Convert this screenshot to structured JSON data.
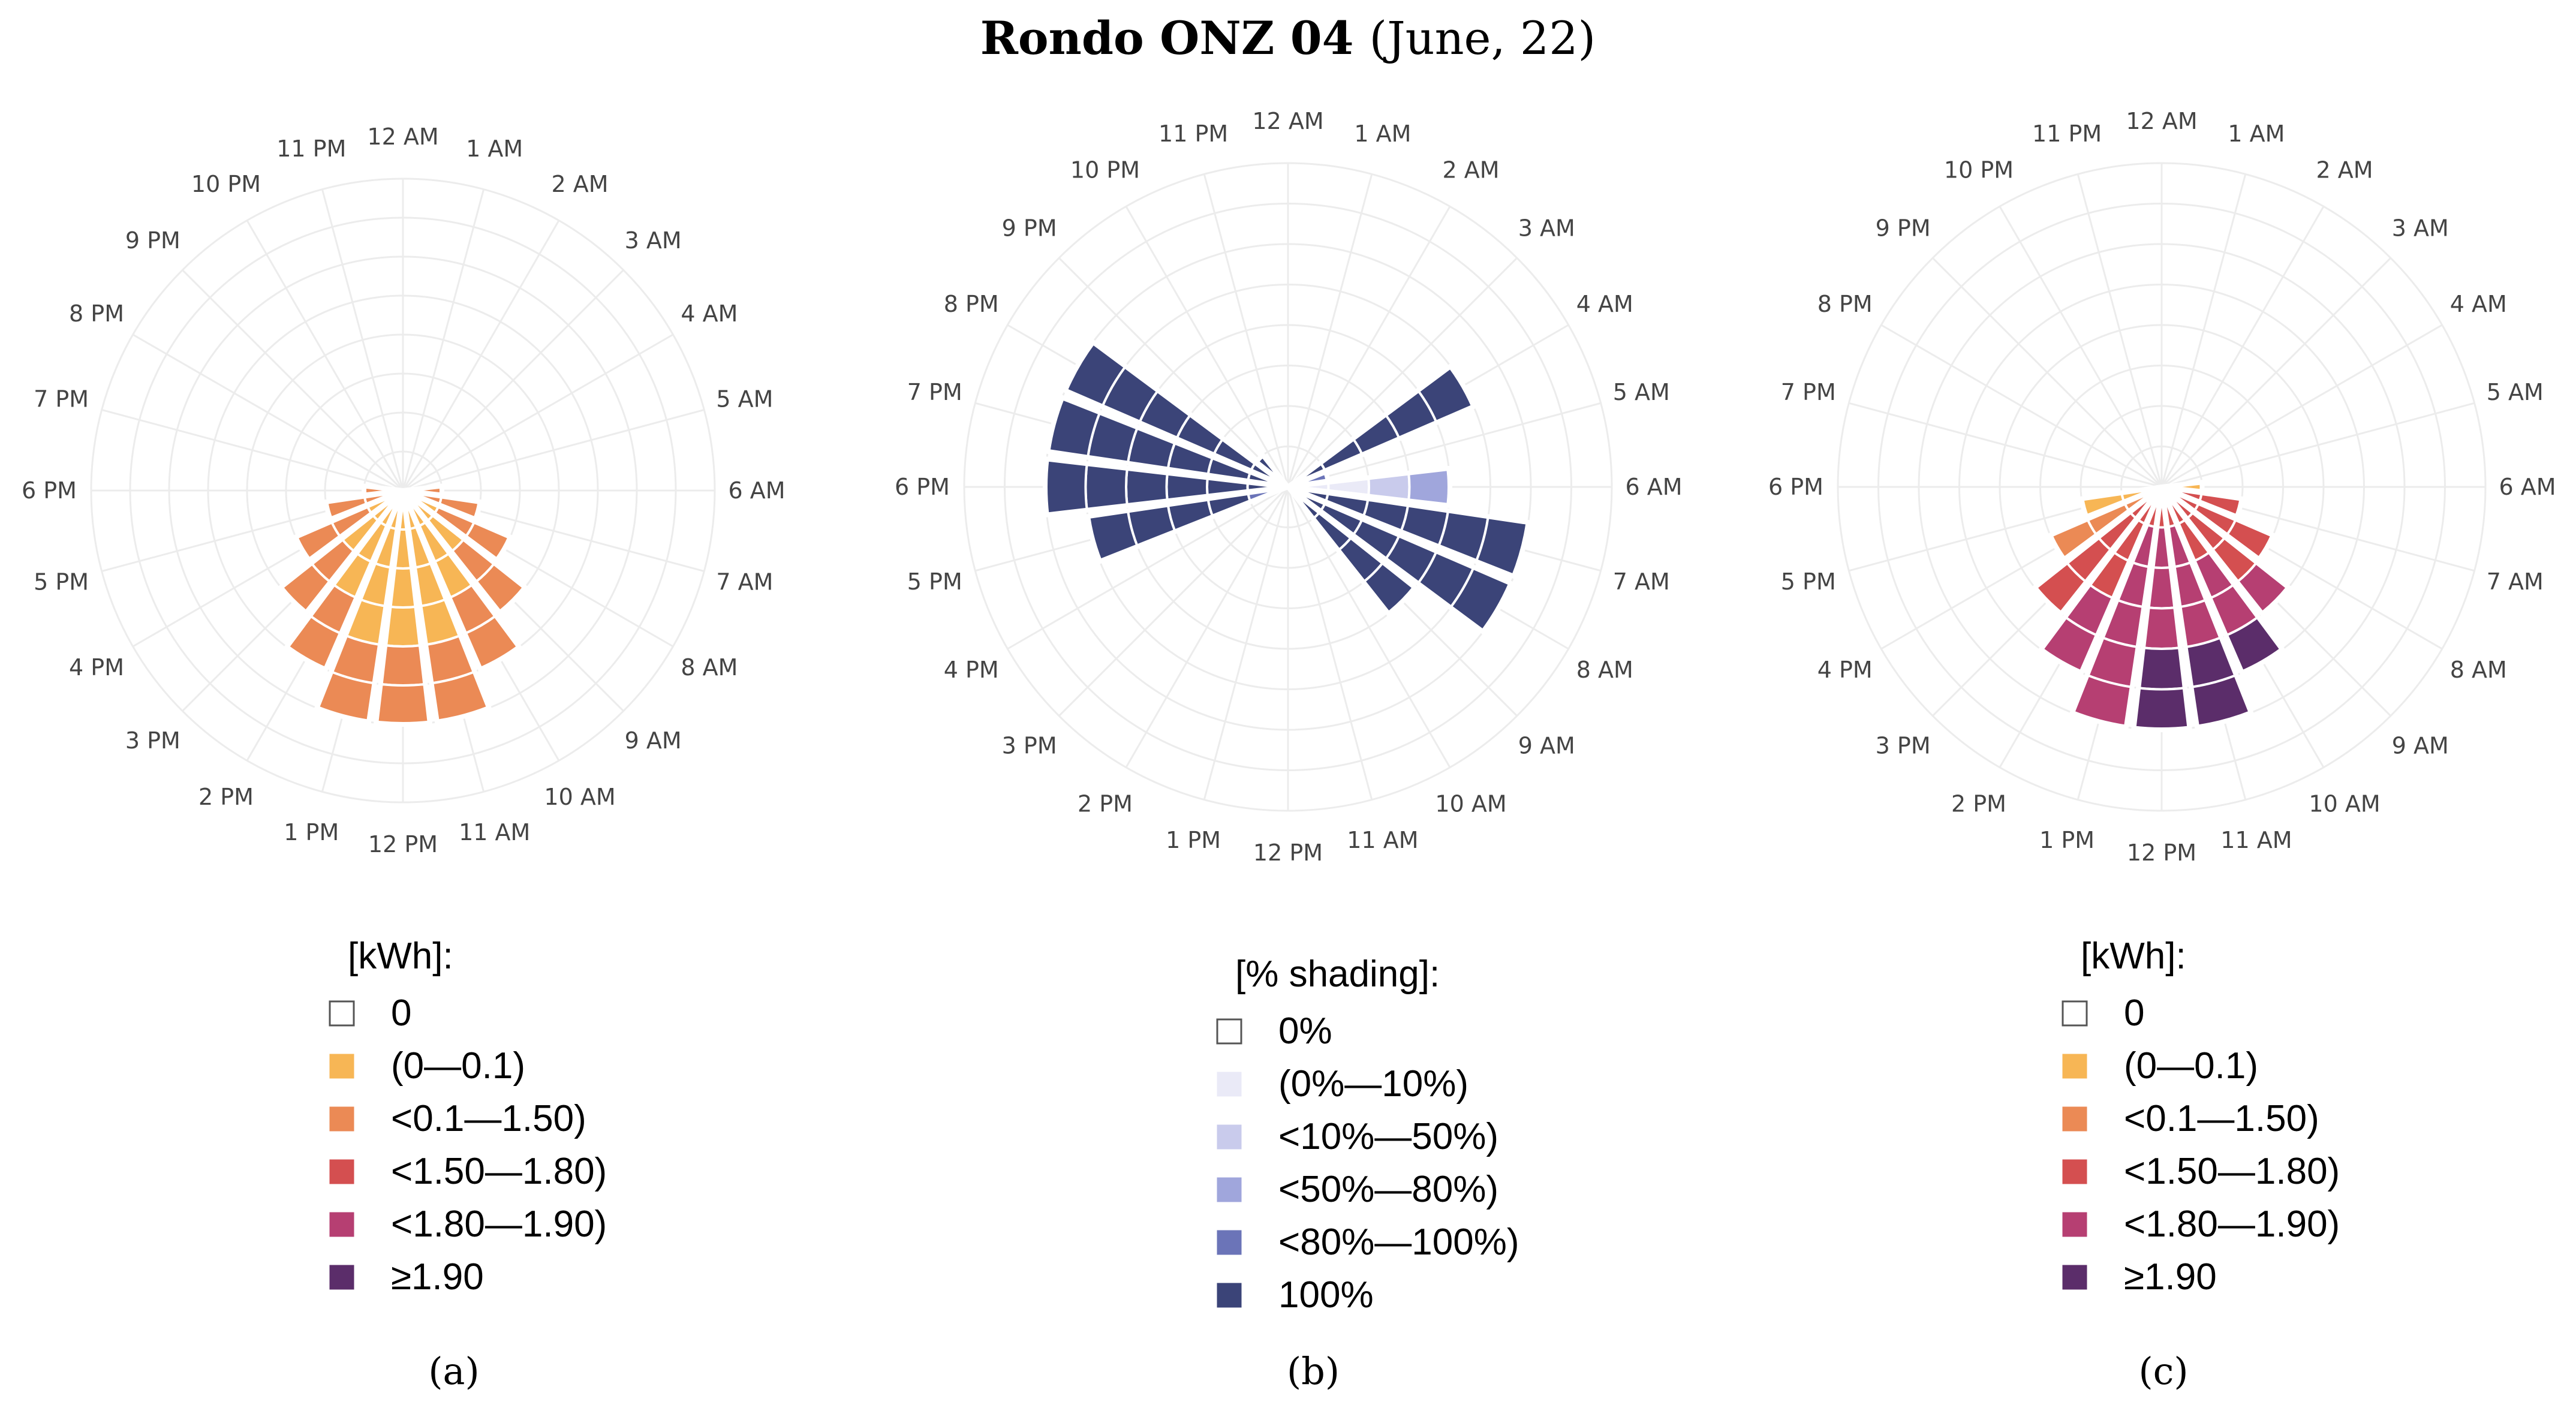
{
  "figure": {
    "title_bold": "Rondo ONZ 04",
    "title_rest": "(June, 22)"
  },
  "hour_labels": [
    "12 AM",
    "1 AM",
    "2 AM",
    "3 AM",
    "4 AM",
    "5 AM",
    "6 AM",
    "7 AM",
    "8 AM",
    "9 AM",
    "10 AM",
    "11 AM",
    "12 PM",
    "1 PM",
    "2 PM",
    "3 PM",
    "4 PM",
    "5 PM",
    "6 PM",
    "7 PM",
    "8 PM",
    "9 PM",
    "10 PM",
    "11 PM"
  ],
  "chart_data": [
    {
      "type": "polar-stacked-bar",
      "panel": "a",
      "caption": "(a)",
      "axis": "hour of day",
      "legend": {
        "title": "[kWh]:",
        "entries": [
          {
            "label": "0",
            "color": "#ffffff"
          },
          {
            "label": "(0—0.1)",
            "color": "#f7b655"
          },
          {
            "label": "<0.1—1.50)",
            "color": "#eb8a55"
          },
          {
            "label": "<1.50—1.80)",
            "color": "#d44f50"
          },
          {
            "label": "<1.80—1.90)",
            "color": "#b63f72"
          },
          {
            "label": "≥1.90",
            "color": "#5b2d6a"
          }
        ]
      },
      "bars": [
        {
          "hour": "6 AM",
          "segments": [
            2
          ]
        },
        {
          "hour": "7 AM",
          "segments": [
            2,
            2
          ]
        },
        {
          "hour": "8 AM",
          "segments": [
            1,
            2,
            2
          ]
        },
        {
          "hour": "9 AM",
          "segments": [
            1,
            1,
            2,
            2
          ]
        },
        {
          "hour": "10 AM",
          "segments": [
            1,
            1,
            1,
            2,
            2
          ]
        },
        {
          "hour": "11 AM",
          "segments": [
            1,
            1,
            1,
            1,
            2,
            2
          ]
        },
        {
          "hour": "12 PM",
          "segments": [
            1,
            1,
            1,
            1,
            2,
            2
          ]
        },
        {
          "hour": "1 PM",
          "segments": [
            1,
            1,
            1,
            1,
            2,
            2
          ]
        },
        {
          "hour": "2 PM",
          "segments": [
            1,
            1,
            1,
            2,
            2
          ]
        },
        {
          "hour": "3 PM",
          "segments": [
            1,
            1,
            2,
            2
          ]
        },
        {
          "hour": "4 PM",
          "segments": [
            1,
            2,
            2
          ]
        },
        {
          "hour": "5 PM",
          "segments": [
            2,
            2
          ]
        },
        {
          "hour": "6 PM",
          "segments": [
            2
          ]
        }
      ]
    },
    {
      "type": "polar-stacked-bar",
      "panel": "b",
      "caption": "(b)",
      "axis": "hour of day",
      "legend": {
        "title": "[% shading]:",
        "entries": [
          {
            "label": "0%",
            "color": "#ffffff"
          },
          {
            "label": "(0%—10%)",
            "color": "#eaeaf7"
          },
          {
            "label": "<10%—50%)",
            "color": "#c9cbec"
          },
          {
            "label": "<50%—80%)",
            "color": "#a0a6dc"
          },
          {
            "label": "<80%—100%)",
            "color": "#6b74b8"
          },
          {
            "label": "100%",
            "color": "#3b4478"
          }
        ]
      },
      "bars": [
        {
          "hour": "4 AM",
          "segments": [
            5,
            5,
            5,
            5,
            5
          ]
        },
        {
          "hour": "5 AM",
          "segments": [
            4
          ]
        },
        {
          "hour": "6 AM",
          "segments": [
            1,
            1,
            2,
            3
          ]
        },
        {
          "hour": "7 AM",
          "segments": [
            5,
            5,
            5,
            5,
            5,
            5
          ]
        },
        {
          "hour": "8 AM",
          "segments": [
            5,
            5,
            5,
            5,
            5,
            5
          ]
        },
        {
          "hour": "9 AM",
          "segments": [
            5,
            5,
            5,
            5
          ]
        },
        {
          "hour": "5 PM",
          "segments": [
            4,
            5,
            5,
            5,
            5
          ]
        },
        {
          "hour": "6 PM",
          "segments": [
            5,
            5,
            5,
            5,
            5,
            5
          ]
        },
        {
          "hour": "7 PM",
          "segments": [
            5,
            5,
            5,
            5,
            5,
            5
          ]
        },
        {
          "hour": "8 PM",
          "segments": [
            5,
            5,
            5,
            5,
            5,
            5
          ]
        },
        {
          "hour": "9 PM",
          "segments": [
            5
          ]
        }
      ]
    },
    {
      "type": "polar-stacked-bar",
      "panel": "c",
      "caption": "(c)",
      "axis": "hour of day",
      "legend": {
        "title": "[kWh]:",
        "entries": [
          {
            "label": "0",
            "color": "#ffffff"
          },
          {
            "label": "(0—0.1)",
            "color": "#f7b655"
          },
          {
            "label": "<0.1—1.50)",
            "color": "#eb8a55"
          },
          {
            "label": "<1.50—1.80)",
            "color": "#d44f50"
          },
          {
            "label": "<1.80—1.90)",
            "color": "#b63f72"
          },
          {
            "label": "≥1.90",
            "color": "#5b2d6a"
          }
        ]
      },
      "bars": [
        {
          "hour": "6 AM",
          "segments": [
            1
          ]
        },
        {
          "hour": "7 AM",
          "segments": [
            3,
            3
          ]
        },
        {
          "hour": "8 AM",
          "segments": [
            3,
            3,
            3
          ]
        },
        {
          "hour": "9 AM",
          "segments": [
            3,
            3,
            3,
            4
          ]
        },
        {
          "hour": "10 AM",
          "segments": [
            3,
            3,
            4,
            4,
            5
          ]
        },
        {
          "hour": "11 AM",
          "segments": [
            3,
            4,
            4,
            4,
            5,
            5
          ]
        },
        {
          "hour": "12 PM",
          "segments": [
            3,
            4,
            4,
            4,
            5,
            5
          ]
        },
        {
          "hour": "1 PM",
          "segments": [
            3,
            4,
            4,
            4,
            4,
            4
          ]
        },
        {
          "hour": "2 PM",
          "segments": [
            3,
            3,
            3,
            4,
            4
          ]
        },
        {
          "hour": "3 PM",
          "segments": [
            3,
            3,
            3,
            3
          ]
        },
        {
          "hour": "4 PM",
          "segments": [
            2,
            2,
            2
          ]
        },
        {
          "hour": "5 PM",
          "segments": [
            1,
            1
          ]
        }
      ]
    }
  ]
}
